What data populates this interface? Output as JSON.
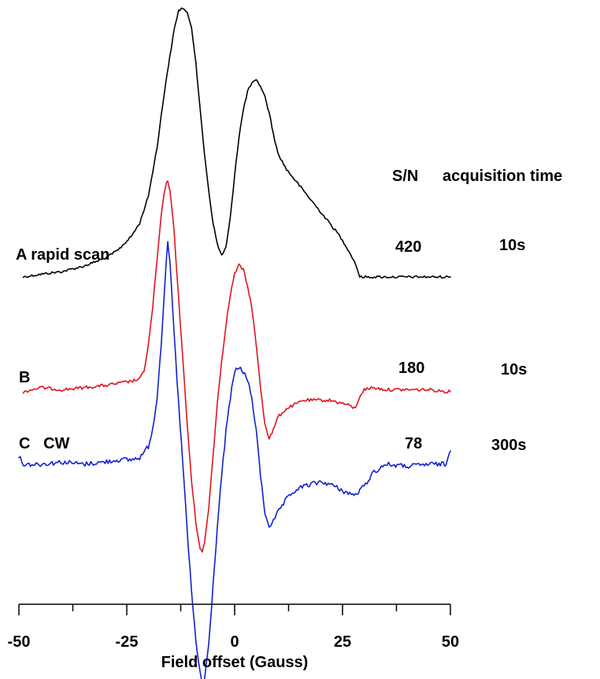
{
  "chart_data": {
    "type": "line",
    "title": "",
    "xlabel": "Field offset (Gauss)",
    "ylabel": "",
    "xlim": [
      -50,
      50
    ],
    "x_ticks": [
      -50,
      -25,
      0,
      25,
      50
    ],
    "x_tick_labels": [
      "-50",
      "-25",
      "0",
      "25",
      "50"
    ],
    "grid": false,
    "table_header": {
      "sn": "S/N",
      "acq": "acquisition time"
    },
    "series": [
      {
        "label": "A rapid scan",
        "color": "#000000",
        "sn": "420",
        "time": "10s",
        "points": [
          [
            -49,
            0.0
          ],
          [
            -45,
            0.01
          ],
          [
            -40,
            0.02
          ],
          [
            -35,
            0.04
          ],
          [
            -30,
            0.07
          ],
          [
            -27,
            0.1
          ],
          [
            -24,
            0.15
          ],
          [
            -22,
            0.2
          ],
          [
            -20,
            0.3
          ],
          [
            -18,
            0.48
          ],
          [
            -16,
            0.72
          ],
          [
            -14,
            0.92
          ],
          [
            -13,
            0.99
          ],
          [
            -12,
            1.0
          ],
          [
            -11,
            0.98
          ],
          [
            -10,
            0.93
          ],
          [
            -9,
            0.8
          ],
          [
            -8,
            0.62
          ],
          [
            -7,
            0.46
          ],
          [
            -6,
            0.32
          ],
          [
            -5,
            0.2
          ],
          [
            -4,
            0.12
          ],
          [
            -3,
            0.08
          ],
          [
            -2,
            0.11
          ],
          [
            -1,
            0.22
          ],
          [
            0,
            0.38
          ],
          [
            1,
            0.52
          ],
          [
            2,
            0.62
          ],
          [
            3,
            0.69
          ],
          [
            4,
            0.72
          ],
          [
            5,
            0.73
          ],
          [
            6,
            0.71
          ],
          [
            7,
            0.67
          ],
          [
            8,
            0.61
          ],
          [
            9,
            0.53
          ],
          [
            10,
            0.46
          ],
          [
            12,
            0.4
          ],
          [
            14,
            0.36
          ],
          [
            16,
            0.32
          ],
          [
            18,
            0.28
          ],
          [
            20,
            0.24
          ],
          [
            22,
            0.2
          ],
          [
            24,
            0.16
          ],
          [
            26,
            0.11
          ],
          [
            28,
            0.05
          ],
          [
            29,
            0.0
          ],
          [
            32,
            0.0
          ],
          [
            36,
            0.0
          ],
          [
            40,
            0.0
          ],
          [
            45,
            0.0
          ],
          [
            50,
            0.0
          ]
        ]
      },
      {
        "label": "B",
        "color": "#e0141e",
        "sn": "180",
        "time": "10s",
        "points": [
          [
            -49,
            0.0
          ],
          [
            -45,
            0.02
          ],
          [
            -40,
            0.01
          ],
          [
            -35,
            0.02
          ],
          [
            -30,
            0.03
          ],
          [
            -27,
            0.04
          ],
          [
            -24,
            0.05
          ],
          [
            -22,
            0.06
          ],
          [
            -21,
            0.1
          ],
          [
            -20,
            0.22
          ],
          [
            -19,
            0.4
          ],
          [
            -18,
            0.62
          ],
          [
            -17,
            0.84
          ],
          [
            -16,
            0.98
          ],
          [
            -15.5,
            1.0
          ],
          [
            -15,
            0.96
          ],
          [
            -14,
            0.75
          ],
          [
            -13,
            0.45
          ],
          [
            -12,
            0.15
          ],
          [
            -11,
            -0.15
          ],
          [
            -10,
            -0.42
          ],
          [
            -9,
            -0.62
          ],
          [
            -8,
            -0.74
          ],
          [
            -7.5,
            -0.76
          ],
          [
            -7,
            -0.72
          ],
          [
            -6,
            -0.55
          ],
          [
            -5,
            -0.3
          ],
          [
            -4,
            -0.05
          ],
          [
            -3,
            0.15
          ],
          [
            -2,
            0.32
          ],
          [
            -1,
            0.46
          ],
          [
            0,
            0.56
          ],
          [
            1,
            0.6
          ],
          [
            2,
            0.58
          ],
          [
            3,
            0.5
          ],
          [
            4,
            0.4
          ],
          [
            5,
            0.22
          ],
          [
            6,
            0.02
          ],
          [
            7,
            -0.15
          ],
          [
            8,
            -0.22
          ],
          [
            9,
            -0.18
          ],
          [
            10,
            -0.12
          ],
          [
            12,
            -0.08
          ],
          [
            14,
            -0.06
          ],
          [
            16,
            -0.04
          ],
          [
            18,
            -0.04
          ],
          [
            20,
            -0.04
          ],
          [
            22,
            -0.04
          ],
          [
            24,
            -0.05
          ],
          [
            26,
            -0.06
          ],
          [
            28,
            -0.08
          ],
          [
            29,
            -0.02
          ],
          [
            30,
            0.01
          ],
          [
            32,
            0.02
          ],
          [
            35,
            0.01
          ],
          [
            40,
            0.01
          ],
          [
            45,
            0.01
          ],
          [
            50,
            0.0
          ]
        ]
      },
      {
        "label": "C   CW",
        "color": "#1020d0",
        "sn": "78",
        "time": "300s",
        "points": [
          [
            -50,
            0.04
          ],
          [
            -49,
            0.0
          ],
          [
            -45,
            0.0
          ],
          [
            -40,
            0.01
          ],
          [
            -35,
            0.0
          ],
          [
            -30,
            0.01
          ],
          [
            -27,
            0.02
          ],
          [
            -24,
            0.02
          ],
          [
            -22,
            0.03
          ],
          [
            -20,
            0.08
          ],
          [
            -19,
            0.16
          ],
          [
            -18,
            0.3
          ],
          [
            -17,
            0.55
          ],
          [
            -16,
            0.88
          ],
          [
            -15.5,
            1.0
          ],
          [
            -15,
            0.92
          ],
          [
            -14,
            0.58
          ],
          [
            -13,
            0.28
          ],
          [
            -12,
            0.0
          ],
          [
            -11,
            -0.3
          ],
          [
            -10,
            -0.58
          ],
          [
            -9,
            -0.8
          ],
          [
            -8,
            -0.95
          ],
          [
            -7.5,
            -1.0
          ],
          [
            -7,
            -0.98
          ],
          [
            -6,
            -0.82
          ],
          [
            -5,
            -0.55
          ],
          [
            -4,
            -0.28
          ],
          [
            -3,
            -0.05
          ],
          [
            -2,
            0.15
          ],
          [
            -1,
            0.3
          ],
          [
            0,
            0.42
          ],
          [
            1,
            0.44
          ],
          [
            2,
            0.42
          ],
          [
            3,
            0.38
          ],
          [
            4,
            0.3
          ],
          [
            5,
            0.15
          ],
          [
            6,
            -0.05
          ],
          [
            7,
            -0.22
          ],
          [
            8,
            -0.28
          ],
          [
            9,
            -0.26
          ],
          [
            10,
            -0.22
          ],
          [
            12,
            -0.16
          ],
          [
            14,
            -0.12
          ],
          [
            16,
            -0.1
          ],
          [
            18,
            -0.09
          ],
          [
            20,
            -0.08
          ],
          [
            22,
            -0.09
          ],
          [
            24,
            -0.11
          ],
          [
            26,
            -0.13
          ],
          [
            28,
            -0.14
          ],
          [
            30,
            -0.1
          ],
          [
            32,
            -0.04
          ],
          [
            35,
            0.0
          ],
          [
            40,
            -0.01
          ],
          [
            45,
            0.0
          ],
          [
            49,
            0.0
          ],
          [
            50,
            0.06
          ]
        ]
      }
    ]
  }
}
